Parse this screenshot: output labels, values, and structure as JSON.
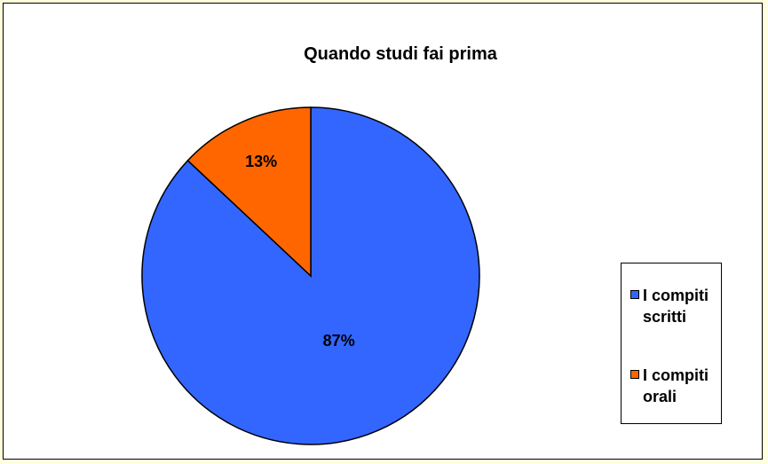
{
  "chart_data": {
    "type": "pie",
    "title": "Quando studi fai prima",
    "slices": [
      {
        "label": "I compiti scritti",
        "value": 87,
        "display": "87%",
        "color": "#3366FF"
      },
      {
        "label": "I compiti orali",
        "value": 13,
        "display": "13%",
        "color": "#FF6600"
      }
    ],
    "legend_placement": "right"
  }
}
